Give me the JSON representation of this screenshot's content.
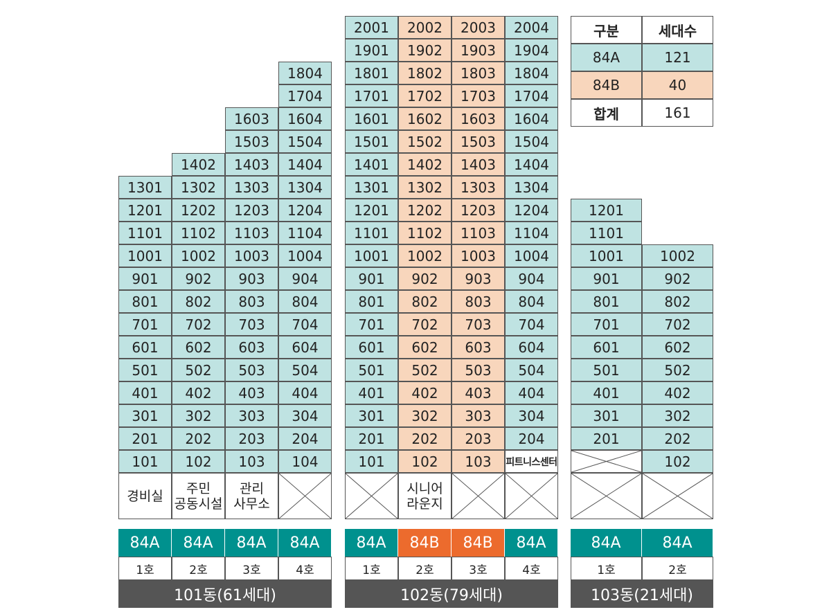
{
  "legend": {
    "headers": [
      "구분",
      "세대수"
    ],
    "rows": [
      {
        "type": "84A",
        "count": "121",
        "style": "a"
      },
      {
        "type": "84B",
        "count": "40",
        "style": "b"
      },
      {
        "type": "합계",
        "count": "161",
        "style": "w"
      }
    ]
  },
  "colors": {
    "84A_cell": "#bfe3e2",
    "84B_cell": "#f8d6bc",
    "84A_label": "#00918e",
    "84B_label": "#ec6b2d",
    "building_bar": "#555555"
  },
  "buildings": [
    {
      "name": "101동(61세대)",
      "lines": [
        {
          "ho": "1호",
          "type": "84A",
          "floors": [
            "101",
            "201",
            "301",
            "401",
            "501",
            "601",
            "701",
            "801",
            "901",
            "1001",
            "1101",
            "1201",
            "1301"
          ],
          "ground": "경비실"
        },
        {
          "ho": "2호",
          "type": "84A",
          "floors": [
            "102",
            "202",
            "302",
            "402",
            "502",
            "602",
            "702",
            "802",
            "902",
            "1002",
            "1102",
            "1202",
            "1302",
            "1402"
          ],
          "ground": "주민\n공동시설"
        },
        {
          "ho": "3호",
          "type": "84A",
          "floors": [
            "103",
            "203",
            "303",
            "403",
            "503",
            "603",
            "703",
            "803",
            "903",
            "1003",
            "1103",
            "1203",
            "1303",
            "1403",
            "1503",
            "1603"
          ],
          "ground": "관리\n사무소"
        },
        {
          "ho": "4호",
          "type": "84A",
          "floors": [
            "104",
            "204",
            "304",
            "404",
            "504",
            "604",
            "704",
            "804",
            "904",
            "1004",
            "1104",
            "1204",
            "1304",
            "1404",
            "1504",
            "1604",
            "1704",
            "1804"
          ],
          "ground": ""
        }
      ]
    },
    {
      "name": "102동(79세대)",
      "lines": [
        {
          "ho": "1호",
          "type": "84A",
          "floors": [
            "101",
            "201",
            "301",
            "401",
            "501",
            "601",
            "701",
            "801",
            "901",
            "1001",
            "1101",
            "1201",
            "1301",
            "1401",
            "1501",
            "1601",
            "1701",
            "1801",
            "1901",
            "2001"
          ],
          "ground": ""
        },
        {
          "ho": "2호",
          "type": "84B",
          "floors": [
            "102",
            "202",
            "302",
            "402",
            "502",
            "602",
            "702",
            "802",
            "902",
            "1002",
            "1102",
            "1202",
            "1302",
            "1402",
            "1502",
            "1602",
            "1702",
            "1802",
            "1902",
            "2002"
          ],
          "ground": "시니어\n라운지"
        },
        {
          "ho": "3호",
          "type": "84B",
          "floors": [
            "103",
            "203",
            "303",
            "403",
            "503",
            "603",
            "703",
            "803",
            "903",
            "1003",
            "1103",
            "1203",
            "1303",
            "1403",
            "1503",
            "1603",
            "1703",
            "1803",
            "1903",
            "2003"
          ],
          "ground": ""
        },
        {
          "ho": "4호",
          "type": "84A",
          "floors": [
            "피트니스센터",
            "204",
            "304",
            "404",
            "504",
            "604",
            "704",
            "804",
            "904",
            "1004",
            "1104",
            "1204",
            "1304",
            "1404",
            "1504",
            "1604",
            "1704",
            "1804",
            "1904",
            "2004"
          ],
          "ground": ""
        }
      ]
    },
    {
      "name": "103동(21세대)",
      "lines": [
        {
          "ho": "1호",
          "type": "84A",
          "floors": [
            "",
            "201",
            "301",
            "401",
            "501",
            "601",
            "701",
            "801",
            "901",
            "1001",
            "1101",
            "1201"
          ],
          "ground": ""
        },
        {
          "ho": "2호",
          "type": "84A",
          "floors": [
            "102",
            "202",
            "302",
            "402",
            "502",
            "602",
            "702",
            "802",
            "902",
            "1002"
          ],
          "ground": ""
        }
      ]
    }
  ]
}
